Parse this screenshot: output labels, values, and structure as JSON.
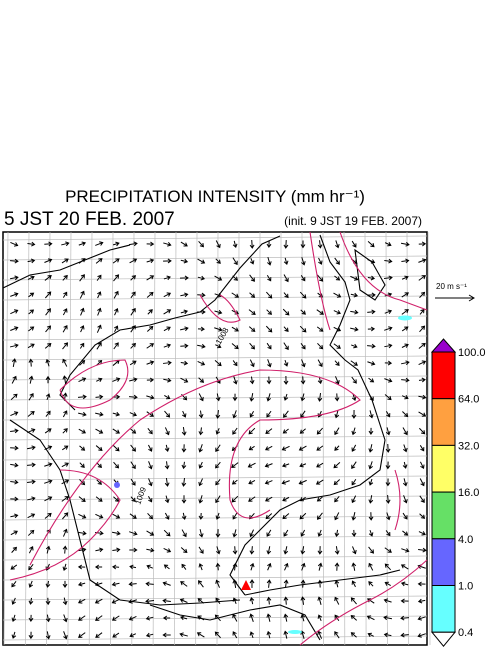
{
  "header": {
    "title": "PRECIPITATION INTENSITY (mm hr⁻¹)",
    "valid_time": "5 JST 20 FEB. 2007",
    "init_time": "(init. 9 JST 19 FEB. 2007)"
  },
  "wind_reference": {
    "label": "20 m s⁻¹"
  },
  "isobars": {
    "labels": [
      "1008",
      "1009"
    ]
  },
  "colorbar": {
    "labels": [
      "100.0",
      "64.0",
      "32.0",
      "16.0",
      "4.0",
      "1.0",
      "0.4"
    ],
    "colors": [
      "#9900cc",
      "#ff0000",
      "#ffa040",
      "#ffff66",
      "#66e066",
      "#6666ff",
      "#66ffff",
      "#ffffff"
    ]
  }
}
